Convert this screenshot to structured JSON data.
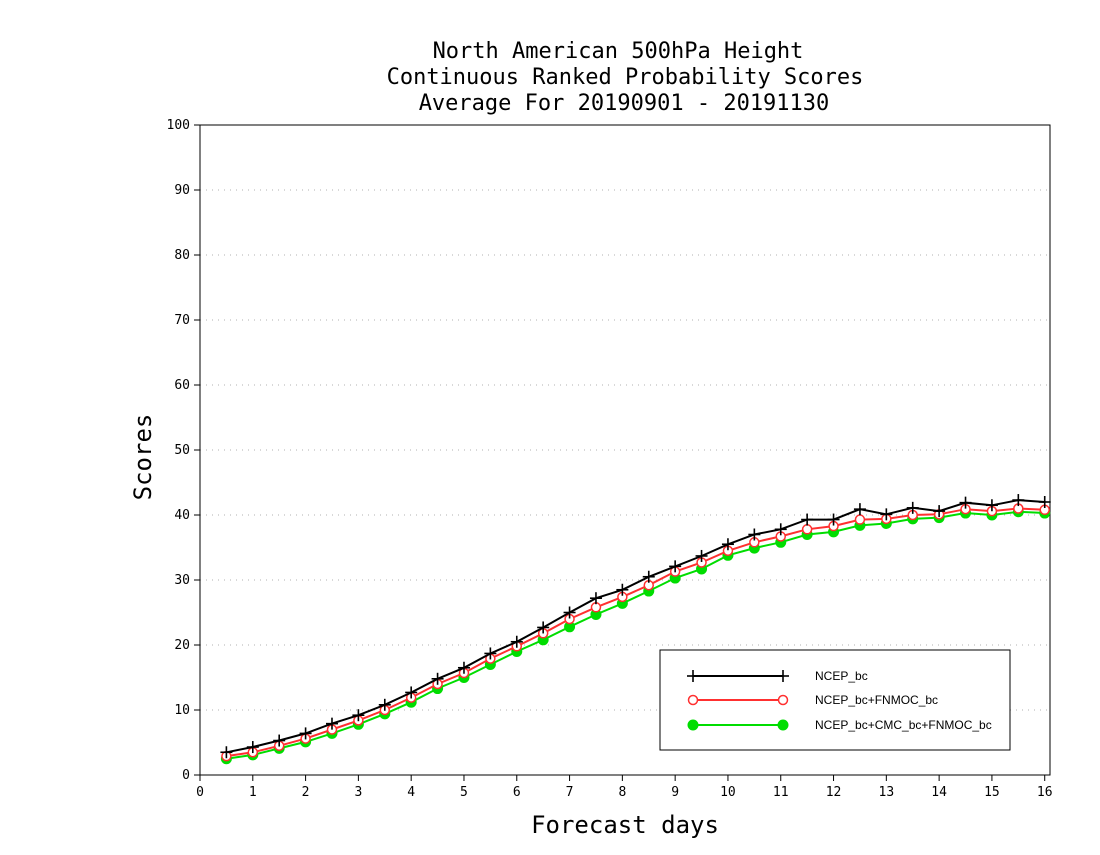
{
  "chart_data": {
    "type": "line",
    "title": [
      "North American 500hPa Height",
      "Continuous Ranked Probability Scores",
      "Average For 20190901 - 20191130"
    ],
    "xlabel": "Forecast days",
    "ylabel": "Scores",
    "xlim": [
      0,
      16.1
    ],
    "ylim": [
      0,
      100
    ],
    "xticks": [
      0,
      1,
      2,
      3,
      4,
      5,
      6,
      7,
      8,
      9,
      10,
      11,
      12,
      13,
      14,
      15,
      16
    ],
    "yticks": [
      0,
      10,
      20,
      30,
      40,
      50,
      60,
      70,
      80,
      90,
      100
    ],
    "grid": true,
    "legend": "bottom-right",
    "x": [
      0.5,
      1.0,
      1.5,
      2.0,
      2.5,
      3.0,
      3.5,
      4.0,
      4.5,
      5.0,
      5.5,
      6.0,
      6.5,
      7.0,
      7.5,
      8.0,
      8.5,
      9.0,
      9.5,
      10.0,
      10.5,
      11.0,
      11.5,
      12.0,
      12.5,
      13.0,
      13.5,
      14.0,
      14.5,
      15.0,
      15.5,
      16.0
    ],
    "series": [
      {
        "name": "NCEP_bc",
        "color": "#000000",
        "marker": "plus",
        "values": [
          3.5,
          4.3,
          5.3,
          6.4,
          7.9,
          9.2,
          10.8,
          12.7,
          14.8,
          16.5,
          18.7,
          20.5,
          22.7,
          25.0,
          27.2,
          28.5,
          30.5,
          32.1,
          33.7,
          35.5,
          37.0,
          37.8,
          39.3,
          39.3,
          40.9,
          40.1,
          41.1,
          40.6,
          41.9,
          41.5,
          42.3,
          42.0
        ]
      },
      {
        "name": "NCEP_bc+FNMOC_bc",
        "color": "#ff3030",
        "marker": "open-circle",
        "values": [
          2.9,
          3.5,
          4.5,
          5.6,
          7.0,
          8.4,
          10.0,
          11.9,
          14.0,
          15.7,
          17.9,
          19.8,
          21.8,
          24.0,
          25.8,
          27.4,
          29.2,
          31.3,
          32.7,
          34.5,
          35.8,
          36.7,
          37.8,
          38.3,
          39.3,
          39.4,
          40.0,
          40.1,
          40.9,
          40.6,
          41.0,
          40.8
        ]
      },
      {
        "name": "NCEP_bc+CMC_bc+FNMOC_bc",
        "color": "#00dd00",
        "marker": "filled-circle",
        "values": [
          2.5,
          3.1,
          4.1,
          5.1,
          6.4,
          7.8,
          9.4,
          11.2,
          13.3,
          15.0,
          17.0,
          19.0,
          20.8,
          22.8,
          24.7,
          26.4,
          28.3,
          30.3,
          31.7,
          33.8,
          34.9,
          35.8,
          37.0,
          37.4,
          38.4,
          38.7,
          39.4,
          39.6,
          40.3,
          40.0,
          40.5,
          40.3
        ]
      }
    ]
  }
}
